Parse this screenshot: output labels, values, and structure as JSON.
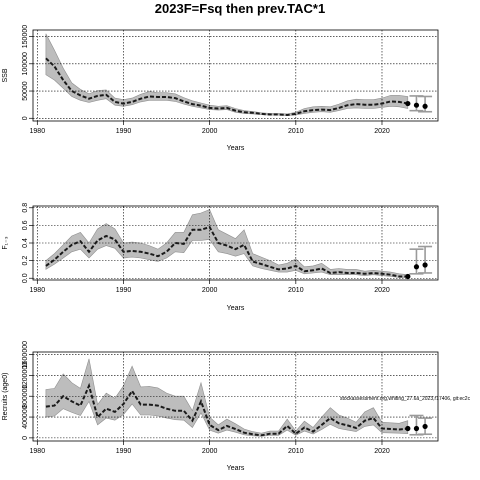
{
  "title": "2023F=Fsq then prev.TAC*1",
  "chart_data": [
    {
      "type": "line",
      "title": "",
      "xlabel": "Years",
      "ylabel": "SSB",
      "xlim": [
        1979.5,
        2026.5
      ],
      "ylim": [
        -5000,
        162000
      ],
      "xticks": [
        1980,
        1990,
        2000,
        2010,
        2020
      ],
      "yticks": [
        0,
        50000,
        100000,
        150000
      ],
      "ytick_labels": [
        "0",
        "50000",
        "100000",
        "150000"
      ],
      "grid": true,
      "x": [
        1981,
        1982,
        1983,
        1984,
        1985,
        1986,
        1987,
        1988,
        1989,
        1990,
        1991,
        1992,
        1993,
        1994,
        1995,
        1996,
        1997,
        1998,
        1999,
        2000,
        2001,
        2002,
        2003,
        2004,
        2005,
        2006,
        2007,
        2008,
        2009,
        2010,
        2011,
        2012,
        2013,
        2014,
        2015,
        2016,
        2017,
        2018,
        2019,
        2020,
        2021,
        2022,
        2023
      ],
      "y": [
        110000,
        95000,
        70000,
        50000,
        42000,
        36000,
        41000,
        43000,
        30000,
        27000,
        30000,
        36000,
        40000,
        39000,
        39000,
        37000,
        31000,
        26000,
        23000,
        19000,
        18000,
        19000,
        14000,
        11000,
        10000,
        8000,
        7000,
        7000,
        6000,
        8000,
        13000,
        15000,
        16000,
        15000,
        19000,
        24000,
        26000,
        25000,
        25000,
        27000,
        31000,
        30000,
        27000
      ],
      "ci_lower": [
        80000,
        70000,
        55000,
        40000,
        33000,
        29000,
        33000,
        36000,
        24000,
        22000,
        25000,
        30000,
        33000,
        33000,
        33000,
        31000,
        26000,
        22000,
        19000,
        16000,
        15000,
        16000,
        11000,
        9000,
        8000,
        6500,
        5800,
        5800,
        5000,
        6000,
        9000,
        11000,
        12000,
        11000,
        14000,
        18000,
        19000,
        18000,
        18000,
        20000,
        22000,
        21000,
        18000
      ],
      "ci_upper": [
        155000,
        125000,
        92000,
        65000,
        53000,
        45000,
        51000,
        52000,
        37000,
        34000,
        37000,
        44000,
        49000,
        47000,
        47000,
        45000,
        38000,
        32000,
        28000,
        24000,
        22000,
        23000,
        18000,
        14000,
        12500,
        10000,
        9000,
        9000,
        8000,
        11000,
        18000,
        21000,
        22000,
        21000,
        26000,
        32000,
        35000,
        34000,
        34000,
        37000,
        42000,
        42000,
        40000
      ],
      "projection": {
        "x": [
          2024,
          2025
        ],
        "y": [
          24000,
          22000
        ],
        "ci_lower": [
          14000,
          12000
        ],
        "ci_upper": [
          41000,
          40000
        ]
      },
      "note": ""
    },
    {
      "type": "line",
      "title": "",
      "xlabel": "Years",
      "ylabel": "F₁₋₃",
      "xlim": [
        1979.5,
        2026.5
      ],
      "ylim": [
        -0.02,
        0.82
      ],
      "xticks": [
        1980,
        1990,
        2000,
        2010,
        2020
      ],
      "yticks": [
        0.0,
        0.2,
        0.4,
        0.6,
        0.8
      ],
      "ytick_labels": [
        "0.0",
        "0.2",
        "0.4",
        "0.6",
        "0.8"
      ],
      "grid": true,
      "x": [
        1981,
        1982,
        1983,
        1984,
        1985,
        1986,
        1987,
        1988,
        1989,
        1990,
        1991,
        1992,
        1993,
        1994,
        1995,
        1996,
        1997,
        1998,
        1999,
        2000,
        2001,
        2002,
        2003,
        2004,
        2005,
        2006,
        2007,
        2008,
        2009,
        2010,
        2011,
        2012,
        2013,
        2014,
        2015,
        2016,
        2017,
        2018,
        2019,
        2020,
        2021,
        2022,
        2023
      ],
      "y": [
        0.14,
        0.21,
        0.3,
        0.38,
        0.42,
        0.3,
        0.43,
        0.48,
        0.44,
        0.3,
        0.31,
        0.3,
        0.28,
        0.25,
        0.3,
        0.4,
        0.39,
        0.55,
        0.55,
        0.58,
        0.4,
        0.37,
        0.33,
        0.38,
        0.19,
        0.16,
        0.13,
        0.1,
        0.11,
        0.14,
        0.08,
        0.09,
        0.11,
        0.06,
        0.07,
        0.06,
        0.06,
        0.05,
        0.06,
        0.05,
        0.04,
        0.02,
        0.02
      ],
      "ci_lower": [
        0.1,
        0.16,
        0.23,
        0.3,
        0.33,
        0.23,
        0.33,
        0.37,
        0.34,
        0.23,
        0.24,
        0.23,
        0.21,
        0.19,
        0.23,
        0.3,
        0.29,
        0.43,
        0.43,
        0.44,
        0.3,
        0.28,
        0.25,
        0.28,
        0.14,
        0.11,
        0.09,
        0.07,
        0.07,
        0.09,
        0.05,
        0.06,
        0.07,
        0.04,
        0.04,
        0.04,
        0.04,
        0.03,
        0.04,
        0.03,
        0.02,
        0.01,
        0.01
      ],
      "ci_upper": [
        0.2,
        0.28,
        0.38,
        0.48,
        0.52,
        0.4,
        0.56,
        0.62,
        0.56,
        0.4,
        0.41,
        0.4,
        0.37,
        0.33,
        0.4,
        0.52,
        0.52,
        0.72,
        0.74,
        0.78,
        0.55,
        0.5,
        0.45,
        0.55,
        0.28,
        0.24,
        0.2,
        0.15,
        0.17,
        0.22,
        0.13,
        0.14,
        0.17,
        0.1,
        0.11,
        0.1,
        0.1,
        0.08,
        0.09,
        0.08,
        0.07,
        0.05,
        0.04
      ],
      "projection": {
        "x": [
          2024,
          2025
        ],
        "y": [
          0.13,
          0.15
        ],
        "ci_lower": [
          0.05,
          0.06
        ],
        "ci_upper": [
          0.33,
          0.36
        ]
      },
      "note": ""
    },
    {
      "type": "line",
      "title": "",
      "xlabel": "Years",
      "ylabel": "Recruits (age0)",
      "xlim": [
        1979.5,
        2026.5
      ],
      "ylim": [
        -60000,
        1650000
      ],
      "xticks": [
        1980,
        1990,
        2000,
        2010,
        2020
      ],
      "yticks": [
        0,
        400000,
        800000,
        1200000,
        1600000
      ],
      "ytick_labels": [
        "0",
        "400000",
        "800000",
        "1200000",
        "1600000"
      ],
      "grid": true,
      "x": [
        1981,
        1982,
        1983,
        1984,
        1985,
        1986,
        1987,
        1988,
        1989,
        1990,
        1991,
        1992,
        1993,
        1994,
        1995,
        1996,
        1997,
        1998,
        1999,
        2000,
        2001,
        2002,
        2003,
        2004,
        2005,
        2006,
        2007,
        2008,
        2009,
        2010,
        2011,
        2012,
        2013,
        2014,
        2015,
        2016,
        2017,
        2018,
        2019,
        2020,
        2021,
        2022,
        2023
      ],
      "y": [
        600000,
        620000,
        800000,
        700000,
        620000,
        1000000,
        400000,
        560000,
        500000,
        650000,
        900000,
        640000,
        640000,
        620000,
        560000,
        520000,
        520000,
        330000,
        700000,
        250000,
        150000,
        230000,
        170000,
        100000,
        70000,
        50000,
        80000,
        80000,
        230000,
        80000,
        200000,
        120000,
        250000,
        380000,
        280000,
        240000,
        190000,
        330000,
        380000,
        180000,
        170000,
        160000,
        180000
      ],
      "ci_lower": [
        400000,
        420000,
        560000,
        490000,
        430000,
        700000,
        250000,
        380000,
        340000,
        450000,
        650000,
        440000,
        440000,
        420000,
        380000,
        350000,
        340000,
        200000,
        480000,
        150000,
        90000,
        150000,
        110000,
        60000,
        40000,
        30000,
        50000,
        50000,
        150000,
        50000,
        130000,
        75000,
        160000,
        260000,
        180000,
        150000,
        120000,
        220000,
        250000,
        100000,
        95000,
        90000,
        80000
      ],
      "ci_upper": [
        930000,
        950000,
        1230000,
        1060000,
        950000,
        1520000,
        640000,
        860000,
        760000,
        1000000,
        1380000,
        980000,
        990000,
        960000,
        860000,
        800000,
        800000,
        520000,
        1060000,
        400000,
        250000,
        360000,
        270000,
        170000,
        120000,
        90000,
        130000,
        130000,
        360000,
        130000,
        320000,
        200000,
        400000,
        580000,
        440000,
        380000,
        300000,
        500000,
        580000,
        300000,
        290000,
        280000,
        330000
      ],
      "projection": {
        "x": [
          2024,
          2025
        ],
        "y": [
          180000,
          220000
        ],
        "ci_lower": [
          60000,
          70000
        ],
        "ci_upper": [
          430000,
          380000
        ]
      },
      "note": "stockassessment.org,whiting_27.6a_2023,r17406, git:ec2c"
    }
  ]
}
